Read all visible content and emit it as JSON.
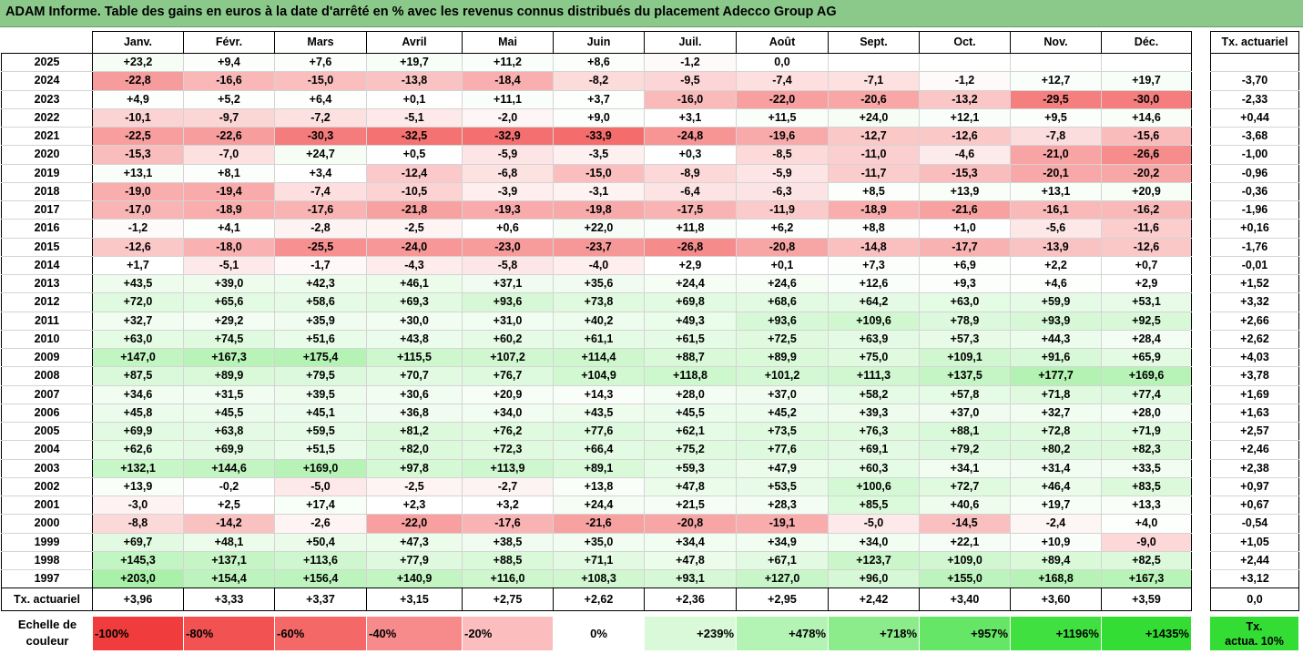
{
  "title": "ADAM Informe. Table des gains en euros à la date d'arrêté en % avec les revenus connus distribués du placement Adecco Group AG",
  "months": [
    "Janv.",
    "Févr.",
    "Mars",
    "Avril",
    "Mai",
    "Juin",
    "Juil.",
    "Août",
    "Sept.",
    "Oct.",
    "Nov.",
    "Déc."
  ],
  "side_header": "Tx. actuariel",
  "rows": [
    {
      "year": "2025",
      "values": [
        "+23,2",
        "+9,4",
        "+7,6",
        "+19,7",
        "+11,2",
        "+8,6",
        "-1,2",
        "0,0",
        "",
        "",
        "",
        ""
      ],
      "tx": ""
    },
    {
      "year": "2024",
      "values": [
        "-22,8",
        "-16,6",
        "-15,0",
        "-13,8",
        "-18,4",
        "-8,2",
        "-9,5",
        "-7,4",
        "-7,1",
        "-1,2",
        "+12,7",
        "+19,7"
      ],
      "tx": "-3,70"
    },
    {
      "year": "2023",
      "values": [
        "+4,9",
        "+5,2",
        "+6,4",
        "+0,1",
        "+11,1",
        "+3,7",
        "-16,0",
        "-22,0",
        "-20,6",
        "-13,2",
        "-29,5",
        "-30,0"
      ],
      "tx": "-2,33"
    },
    {
      "year": "2022",
      "values": [
        "-10,1",
        "-9,7",
        "-7,2",
        "-5,1",
        "-2,0",
        "+9,0",
        "+3,1",
        "+11,5",
        "+24,0",
        "+12,1",
        "+9,5",
        "+14,6"
      ],
      "tx": "+0,44"
    },
    {
      "year": "2021",
      "values": [
        "-22,5",
        "-22,6",
        "-30,3",
        "-32,5",
        "-32,9",
        "-33,9",
        "-24,8",
        "-19,6",
        "-12,7",
        "-12,6",
        "-7,8",
        "-15,6"
      ],
      "tx": "-3,68"
    },
    {
      "year": "2020",
      "values": [
        "-15,3",
        "-7,0",
        "+24,7",
        "+0,5",
        "-5,9",
        "-3,5",
        "+0,3",
        "-8,5",
        "-11,0",
        "-4,6",
        "-21,0",
        "-26,6"
      ],
      "tx": "-1,00"
    },
    {
      "year": "2019",
      "values": [
        "+13,1",
        "+8,1",
        "+3,4",
        "-12,4",
        "-6,8",
        "-15,0",
        "-8,9",
        "-5,9",
        "-11,7",
        "-15,3",
        "-20,1",
        "-20,2"
      ],
      "tx": "-0,96"
    },
    {
      "year": "2018",
      "values": [
        "-19,0",
        "-19,4",
        "-7,4",
        "-10,5",
        "-3,9",
        "-3,1",
        "-6,4",
        "-6,3",
        "+8,5",
        "+13,9",
        "+13,1",
        "+20,9"
      ],
      "tx": "-0,36"
    },
    {
      "year": "2017",
      "values": [
        "-17,0",
        "-18,9",
        "-17,6",
        "-21,8",
        "-19,3",
        "-19,8",
        "-17,5",
        "-11,9",
        "-18,9",
        "-21,6",
        "-16,1",
        "-16,2"
      ],
      "tx": "-1,96"
    },
    {
      "year": "2016",
      "values": [
        "-1,2",
        "+4,1",
        "-2,8",
        "-2,5",
        "+0,6",
        "+22,0",
        "+11,8",
        "+6,2",
        "+8,8",
        "+1,0",
        "-5,6",
        "-11,6"
      ],
      "tx": "+0,16"
    },
    {
      "year": "2015",
      "values": [
        "-12,6",
        "-18,0",
        "-25,5",
        "-24,0",
        "-23,0",
        "-23,7",
        "-26,8",
        "-20,8",
        "-14,8",
        "-17,7",
        "-13,9",
        "-12,6"
      ],
      "tx": "-1,76"
    },
    {
      "year": "2014",
      "values": [
        "+1,7",
        "-5,1",
        "-1,7",
        "-4,3",
        "-5,8",
        "-4,0",
        "+2,9",
        "+0,1",
        "+7,3",
        "+6,9",
        "+2,2",
        "+0,7"
      ],
      "tx": "-0,01"
    },
    {
      "year": "2013",
      "values": [
        "+43,5",
        "+39,0",
        "+42,3",
        "+46,1",
        "+37,1",
        "+35,6",
        "+24,4",
        "+24,6",
        "+12,6",
        "+9,3",
        "+4,6",
        "+2,9"
      ],
      "tx": "+1,52"
    },
    {
      "year": "2012",
      "values": [
        "+72,0",
        "+65,6",
        "+58,6",
        "+69,3",
        "+93,6",
        "+73,8",
        "+69,8",
        "+68,6",
        "+64,2",
        "+63,0",
        "+59,9",
        "+53,1"
      ],
      "tx": "+3,32"
    },
    {
      "year": "2011",
      "values": [
        "+32,7",
        "+29,2",
        "+35,9",
        "+30,0",
        "+31,0",
        "+40,2",
        "+49,3",
        "+93,6",
        "+109,6",
        "+78,9",
        "+93,9",
        "+92,5"
      ],
      "tx": "+2,66"
    },
    {
      "year": "2010",
      "values": [
        "+63,0",
        "+74,5",
        "+51,6",
        "+43,8",
        "+60,2",
        "+61,1",
        "+61,5",
        "+72,5",
        "+63,9",
        "+57,3",
        "+44,3",
        "+28,4"
      ],
      "tx": "+2,62"
    },
    {
      "year": "2009",
      "values": [
        "+147,0",
        "+167,3",
        "+175,4",
        "+115,5",
        "+107,2",
        "+114,4",
        "+88,7",
        "+89,9",
        "+75,0",
        "+109,1",
        "+91,6",
        "+65,9"
      ],
      "tx": "+4,03"
    },
    {
      "year": "2008",
      "values": [
        "+87,5",
        "+89,9",
        "+79,5",
        "+70,7",
        "+76,7",
        "+104,9",
        "+118,8",
        "+101,2",
        "+111,3",
        "+137,5",
        "+177,7",
        "+169,6"
      ],
      "tx": "+3,78"
    },
    {
      "year": "2007",
      "values": [
        "+34,6",
        "+31,5",
        "+39,5",
        "+30,6",
        "+20,9",
        "+14,3",
        "+28,0",
        "+37,0",
        "+58,2",
        "+57,8",
        "+71,8",
        "+77,4"
      ],
      "tx": "+1,69"
    },
    {
      "year": "2006",
      "values": [
        "+45,8",
        "+45,5",
        "+45,1",
        "+36,8",
        "+34,0",
        "+43,5",
        "+45,5",
        "+45,2",
        "+39,3",
        "+37,0",
        "+32,7",
        "+28,0"
      ],
      "tx": "+1,63"
    },
    {
      "year": "2005",
      "values": [
        "+69,9",
        "+63,8",
        "+59,5",
        "+81,2",
        "+76,2",
        "+77,6",
        "+62,1",
        "+73,5",
        "+76,3",
        "+88,1",
        "+72,8",
        "+71,9"
      ],
      "tx": "+2,57"
    },
    {
      "year": "2004",
      "values": [
        "+62,6",
        "+69,9",
        "+51,5",
        "+82,0",
        "+72,3",
        "+66,4",
        "+75,2",
        "+77,6",
        "+69,1",
        "+79,2",
        "+80,2",
        "+82,3"
      ],
      "tx": "+2,46"
    },
    {
      "year": "2003",
      "values": [
        "+132,1",
        "+144,6",
        "+169,0",
        "+97,8",
        "+113,9",
        "+89,1",
        "+59,3",
        "+47,9",
        "+60,3",
        "+34,1",
        "+31,4",
        "+33,5"
      ],
      "tx": "+2,38"
    },
    {
      "year": "2002",
      "values": [
        "+13,9",
        "-0,2",
        "-5,0",
        "-2,5",
        "-2,7",
        "+13,8",
        "+47,8",
        "+53,5",
        "+100,6",
        "+72,7",
        "+46,4",
        "+83,5"
      ],
      "tx": "+0,97"
    },
    {
      "year": "2001",
      "values": [
        "-3,0",
        "+2,5",
        "+17,4",
        "+2,3",
        "+3,2",
        "+24,4",
        "+21,5",
        "+28,3",
        "+85,5",
        "+40,6",
        "+19,7",
        "+13,3"
      ],
      "tx": "+0,67"
    },
    {
      "year": "2000",
      "values": [
        "-8,8",
        "-14,2",
        "-2,6",
        "-22,0",
        "-17,6",
        "-21,6",
        "-20,8",
        "-19,1",
        "-5,0",
        "-14,5",
        "-2,4",
        "+4,0"
      ],
      "tx": "-0,54"
    },
    {
      "year": "1999",
      "values": [
        "+69,7",
        "+48,1",
        "+50,4",
        "+47,3",
        "+38,5",
        "+35,0",
        "+34,4",
        "+34,9",
        "+34,0",
        "+22,1",
        "+10,9",
        "-9,0"
      ],
      "tx": "+1,05"
    },
    {
      "year": "1998",
      "values": [
        "+145,3",
        "+137,1",
        "+113,6",
        "+77,9",
        "+88,5",
        "+71,1",
        "+47,8",
        "+67,1",
        "+123,7",
        "+109,0",
        "+89,4",
        "+82,5"
      ],
      "tx": "+2,44"
    },
    {
      "year": "1997",
      "values": [
        "+203,0",
        "+154,4",
        "+156,4",
        "+140,9",
        "+116,0",
        "+108,3",
        "+93,1",
        "+127,0",
        "+96,0",
        "+155,0",
        "+168,8",
        "+167,3"
      ],
      "tx": "+3,12"
    }
  ],
  "summary_row": {
    "label": "Tx. actuariel",
    "values": [
      "+3,96",
      "+3,33",
      "+3,37",
      "+3,15",
      "+2,75",
      "+2,62",
      "+2,36",
      "+2,95",
      "+2,42",
      "+3,40",
      "+3,60",
      "+3,59"
    ],
    "tx": "0,0"
  },
  "color_scale": {
    "label_line1": "Echelle de",
    "label_line2": "couleur",
    "steps": [
      {
        "label": "-100%",
        "color": "#f03c3c"
      },
      {
        "label": "-80%",
        "color": "#f25252"
      },
      {
        "label": "-60%",
        "color": "#f46868"
      },
      {
        "label": "-40%",
        "color": "#f78a8a"
      },
      {
        "label": "-20%",
        "color": "#fbbdbd"
      },
      {
        "label": "0%",
        "color": "#ffffff"
      },
      {
        "label": "+239%",
        "color": "#d9f9d9"
      },
      {
        "label": "+478%",
        "color": "#b3f3b3"
      },
      {
        "label": "+718%",
        "color": "#8cec8c"
      },
      {
        "label": "+957%",
        "color": "#66e666"
      },
      {
        "label": "+1196%",
        "color": "#40e040"
      },
      {
        "label": "+1435%",
        "color": "#33dd33"
      }
    ],
    "tx_line1": "Tx.",
    "tx_line2": "actua. 10%",
    "tx_color": "#33dd33"
  },
  "colors": {
    "title_bar": "#8bc98b",
    "negative_base": "#f03c3c",
    "positive_base": "#33dd33"
  }
}
